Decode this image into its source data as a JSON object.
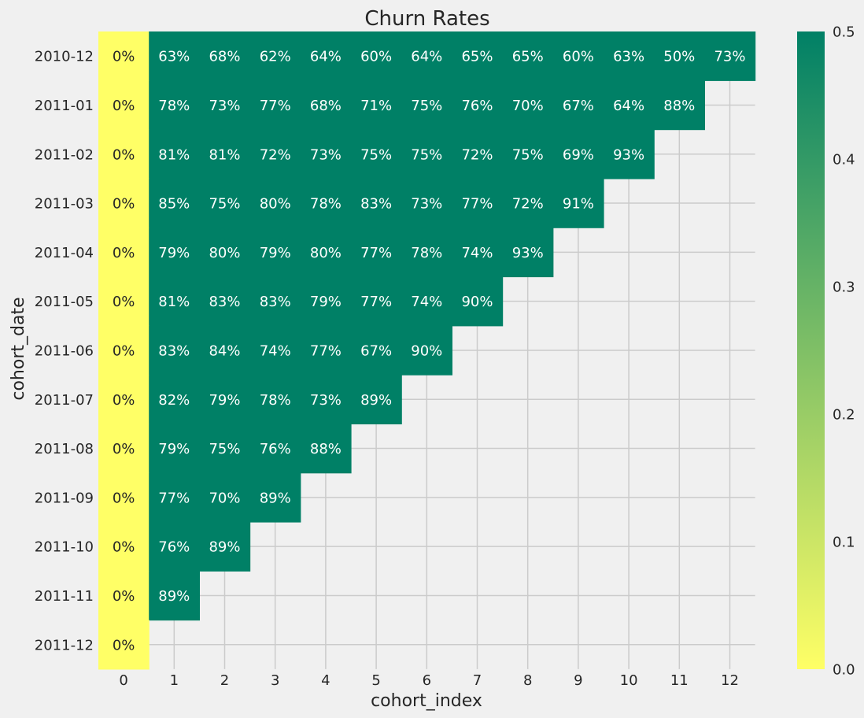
{
  "chart_data": {
    "type": "heatmap",
    "title": "Churn Rates",
    "xlabel": "cohort_index",
    "ylabel": "cohort_date",
    "x_categories": [
      "0",
      "1",
      "2",
      "3",
      "4",
      "5",
      "6",
      "7",
      "8",
      "9",
      "10",
      "11",
      "12"
    ],
    "y_categories": [
      "2010-12",
      "2011-01",
      "2011-02",
      "2011-03",
      "2011-04",
      "2011-05",
      "2011-06",
      "2011-07",
      "2011-08",
      "2011-09",
      "2011-10",
      "2011-11",
      "2011-12"
    ],
    "values": [
      [
        0,
        0.63,
        0.68,
        0.62,
        0.64,
        0.6,
        0.64,
        0.65,
        0.65,
        0.6,
        0.63,
        0.5,
        0.73
      ],
      [
        0,
        0.78,
        0.73,
        0.77,
        0.68,
        0.71,
        0.75,
        0.76,
        0.7,
        0.67,
        0.64,
        0.88
      ],
      [
        0,
        0.81,
        0.81,
        0.72,
        0.73,
        0.75,
        0.75,
        0.72,
        0.75,
        0.69,
        0.93
      ],
      [
        0,
        0.85,
        0.75,
        0.8,
        0.78,
        0.83,
        0.73,
        0.77,
        0.72,
        0.91
      ],
      [
        0,
        0.79,
        0.8,
        0.79,
        0.8,
        0.77,
        0.78,
        0.74,
        0.93
      ],
      [
        0,
        0.81,
        0.83,
        0.83,
        0.79,
        0.77,
        0.74,
        0.9
      ],
      [
        0,
        0.83,
        0.84,
        0.74,
        0.77,
        0.67,
        0.9
      ],
      [
        0,
        0.82,
        0.79,
        0.78,
        0.73,
        0.89
      ],
      [
        0,
        0.79,
        0.75,
        0.76,
        0.88
      ],
      [
        0,
        0.77,
        0.7,
        0.89
      ],
      [
        0,
        0.76,
        0.89
      ],
      [
        0,
        0.89
      ],
      [
        0
      ]
    ],
    "cell_labels": [
      [
        "0%",
        "63%",
        "68%",
        "62%",
        "64%",
        "60%",
        "64%",
        "65%",
        "65%",
        "60%",
        "63%",
        "50%",
        "73%"
      ],
      [
        "0%",
        "78%",
        "73%",
        "77%",
        "68%",
        "71%",
        "75%",
        "76%",
        "70%",
        "67%",
        "64%",
        "88%"
      ],
      [
        "0%",
        "81%",
        "81%",
        "72%",
        "73%",
        "75%",
        "75%",
        "72%",
        "75%",
        "69%",
        "93%"
      ],
      [
        "0%",
        "85%",
        "75%",
        "80%",
        "78%",
        "83%",
        "73%",
        "77%",
        "72%",
        "91%"
      ],
      [
        "0%",
        "79%",
        "80%",
        "79%",
        "80%",
        "77%",
        "78%",
        "74%",
        "93%"
      ],
      [
        "0%",
        "81%",
        "83%",
        "83%",
        "79%",
        "77%",
        "74%",
        "90%"
      ],
      [
        "0%",
        "83%",
        "84%",
        "74%",
        "77%",
        "67%",
        "90%"
      ],
      [
        "0%",
        "82%",
        "79%",
        "78%",
        "73%",
        "89%"
      ],
      [
        "0%",
        "79%",
        "75%",
        "76%",
        "88%"
      ],
      [
        "0%",
        "77%",
        "70%",
        "89%"
      ],
      [
        "0%",
        "76%",
        "89%"
      ],
      [
        "0%",
        "89%"
      ],
      [
        "0%"
      ]
    ],
    "color_range": [
      0,
      0.5
    ],
    "colormap": "summer_r",
    "colorbar_ticks": [
      "0.0",
      "0.1",
      "0.2",
      "0.3",
      "0.4",
      "0.5"
    ],
    "colorbar_tick_values": [
      0,
      0.1,
      0.2,
      0.3,
      0.4,
      0.5
    ],
    "grid": true,
    "colors": {
      "low": "#ffff66",
      "high": "#008066",
      "background": "#f0f0f0",
      "grid": "#cbcbcb",
      "text_dark": "#262626",
      "text_light": "#ffffff"
    }
  }
}
